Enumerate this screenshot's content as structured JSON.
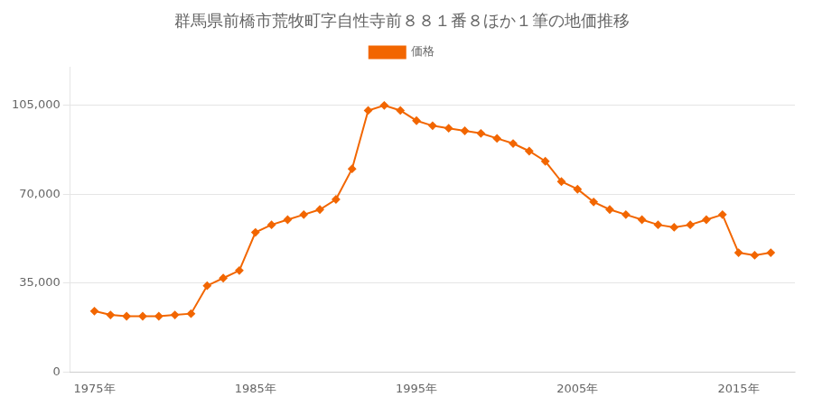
{
  "chart_data": {
    "type": "line",
    "title": "群馬県前橋市荒牧町字自性寺前８８１番８ほか１筆の地価推移",
    "x": [
      1975,
      1976,
      1977,
      1978,
      1979,
      1980,
      1981,
      1982,
      1983,
      1984,
      1985,
      1986,
      1987,
      1988,
      1989,
      1990,
      1991,
      1992,
      1993,
      1994,
      1995,
      1996,
      1997,
      1998,
      1999,
      2000,
      2001,
      2002,
      2003,
      2004,
      2005,
      2006,
      2007,
      2008,
      2009,
      2010,
      2011,
      2012,
      2013,
      2014,
      2015,
      2016,
      2017
    ],
    "series": [
      {
        "name": "価格",
        "color": "#F26600",
        "marker": "diamond",
        "values": [
          24000,
          22500,
          22000,
          22000,
          22000,
          22500,
          23000,
          34000,
          37000,
          40000,
          55000,
          58000,
          60000,
          62000,
          64000,
          68000,
          80000,
          103000,
          105000,
          103000,
          99000,
          97000,
          96000,
          95000,
          94000,
          92000,
          90000,
          87000,
          83000,
          75000,
          72000,
          67000,
          64000,
          62000,
          60000,
          58000,
          57000,
          58000,
          60000,
          62000,
          47000,
          46000,
          47000
        ]
      }
    ],
    "xlim": [
      1973.5,
      2018.5
    ],
    "xticks": [
      {
        "value": 1975,
        "label": "1975年"
      },
      {
        "value": 1985,
        "label": "1985年"
      },
      {
        "value": 1995,
        "label": "1995年"
      },
      {
        "value": 2005,
        "label": "2005年"
      },
      {
        "value": 2015,
        "label": "2015年"
      }
    ],
    "ylim": [
      0,
      120000
    ],
    "yticks": [
      0,
      {
        "value": 35000,
        "label": "35,000"
      },
      {
        "value": 70000,
        "label": "70,000"
      },
      {
        "value": 105000,
        "label": "105,000"
      }
    ],
    "grid": "y",
    "legend": "top"
  }
}
